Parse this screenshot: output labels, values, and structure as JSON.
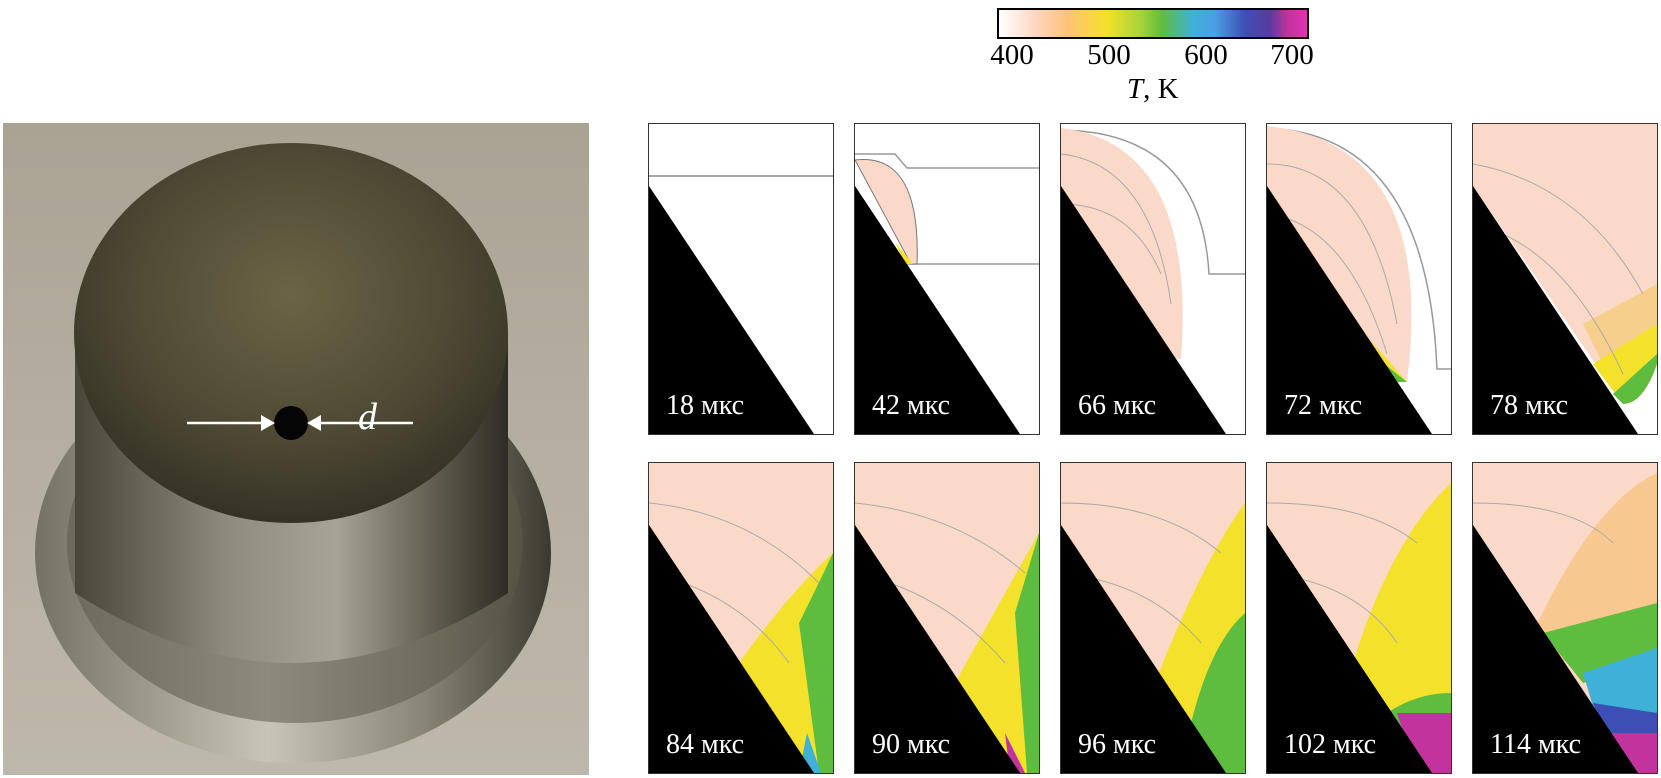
{
  "photo": {
    "dimension_label": "d"
  },
  "colorbar": {
    "ticks": [
      "400",
      "500",
      "600",
      "700"
    ],
    "label_symbol": "T",
    "label_unit": ", K"
  },
  "panels": [
    {
      "label": "18 мкс"
    },
    {
      "label": "42 мкс"
    },
    {
      "label": "66 мкс"
    },
    {
      "label": "72 мкс"
    },
    {
      "label": "78 мкс"
    },
    {
      "label": "84 мкс"
    },
    {
      "label": "90 мкс"
    },
    {
      "label": "96 мкс"
    },
    {
      "label": "102 мкс"
    },
    {
      "label": "114 мкс"
    }
  ]
}
